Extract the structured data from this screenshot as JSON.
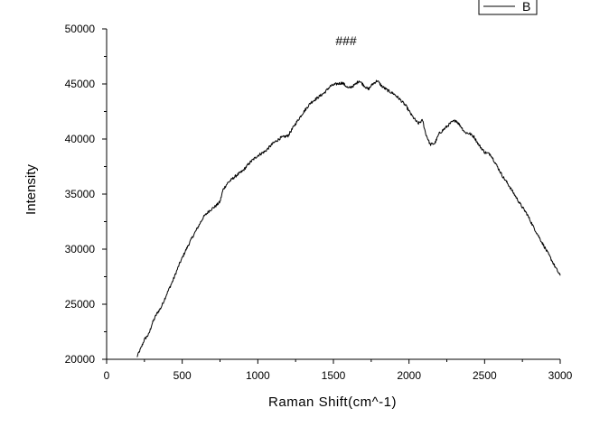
{
  "chart_data": {
    "type": "line",
    "title": "###",
    "xlabel": "Raman Shift(cm^-1)",
    "ylabel": "Intensity",
    "xlim": [
      0,
      3000
    ],
    "ylim": [
      20000,
      50000
    ],
    "xticks": [
      "0",
      "500",
      "1000",
      "1500",
      "2000",
      "2500",
      "3000"
    ],
    "yticks": [
      "20000",
      "25000",
      "30000",
      "35000",
      "40000",
      "45000",
      "50000"
    ],
    "grid": false,
    "legend_position": "top-right",
    "series": [
      {
        "name": "B",
        "color": "#000000",
        "points": [
          [
            200,
            20200
          ],
          [
            230,
            21100
          ],
          [
            250,
            21800
          ],
          [
            280,
            22300
          ],
          [
            300,
            23200
          ],
          [
            330,
            24100
          ],
          [
            360,
            24700
          ],
          [
            400,
            26000
          ],
          [
            440,
            27200
          ],
          [
            480,
            28600
          ],
          [
            520,
            29800
          ],
          [
            560,
            30900
          ],
          [
            600,
            31900
          ],
          [
            640,
            32900
          ],
          [
            680,
            33500
          ],
          [
            720,
            33900
          ],
          [
            750,
            34300
          ],
          [
            770,
            35400
          ],
          [
            800,
            36000
          ],
          [
            850,
            36600
          ],
          [
            900,
            37100
          ],
          [
            950,
            37900
          ],
          [
            1000,
            38500
          ],
          [
            1050,
            38900
          ],
          [
            1100,
            39600
          ],
          [
            1150,
            40100
          ],
          [
            1200,
            40300
          ],
          [
            1250,
            41400
          ],
          [
            1300,
            42400
          ],
          [
            1350,
            43300
          ],
          [
            1400,
            43800
          ],
          [
            1440,
            44200
          ],
          [
            1480,
            44800
          ],
          [
            1520,
            45000
          ],
          [
            1560,
            45100
          ],
          [
            1600,
            44600
          ],
          [
            1640,
            44900
          ],
          [
            1670,
            45300
          ],
          [
            1700,
            44900
          ],
          [
            1730,
            44500
          ],
          [
            1760,
            45000
          ],
          [
            1790,
            45300
          ],
          [
            1820,
            44800
          ],
          [
            1860,
            44400
          ],
          [
            1900,
            44100
          ],
          [
            1940,
            43600
          ],
          [
            1980,
            43000
          ],
          [
            2020,
            42100
          ],
          [
            2060,
            41400
          ],
          [
            2090,
            41700
          ],
          [
            2110,
            40500
          ],
          [
            2140,
            39500
          ],
          [
            2170,
            39600
          ],
          [
            2200,
            40500
          ],
          [
            2240,
            41000
          ],
          [
            2280,
            41500
          ],
          [
            2310,
            41700
          ],
          [
            2340,
            41200
          ],
          [
            2370,
            40600
          ],
          [
            2400,
            40500
          ],
          [
            2430,
            40200
          ],
          [
            2460,
            39500
          ],
          [
            2500,
            38800
          ],
          [
            2540,
            38600
          ],
          [
            2580,
            37600
          ],
          [
            2620,
            36600
          ],
          [
            2660,
            35800
          ],
          [
            2700,
            34900
          ],
          [
            2740,
            34000
          ],
          [
            2780,
            33200
          ],
          [
            2820,
            32100
          ],
          [
            2860,
            31100
          ],
          [
            2900,
            30100
          ],
          [
            2940,
            29100
          ],
          [
            2970,
            28300
          ],
          [
            3000,
            27600
          ]
        ]
      }
    ]
  }
}
